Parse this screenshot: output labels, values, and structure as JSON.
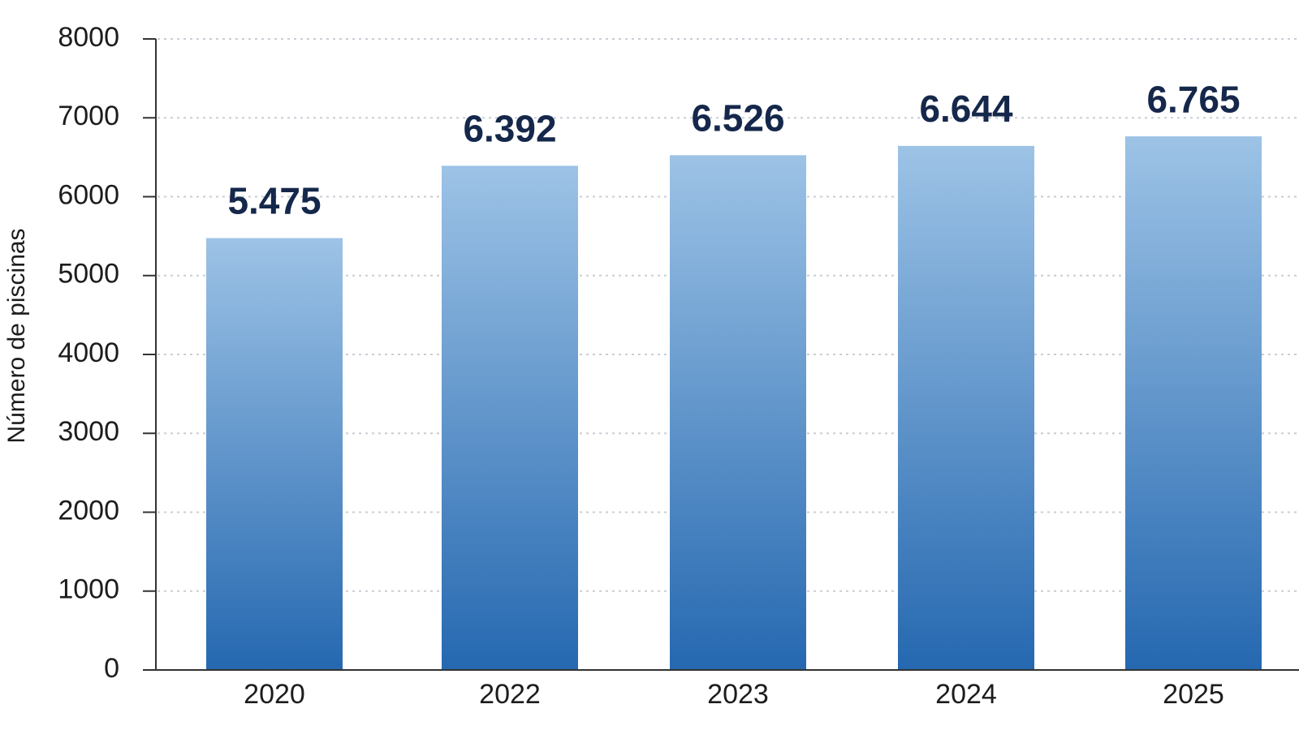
{
  "chart_data": {
    "type": "bar",
    "categories": [
      "2020",
      "2022",
      "2023",
      "2024",
      "2025"
    ],
    "values": [
      5475,
      6392,
      6526,
      6644,
      6765
    ],
    "value_labels": [
      "5.475",
      "6.392",
      "6.526",
      "6.644",
      "6.765"
    ],
    "ylabel": "Número de piscinas",
    "xlabel": "",
    "title": "",
    "ylim": [
      0,
      8000
    ],
    "yticks": [
      "0",
      "1000",
      "2000",
      "3000",
      "4000",
      "5000",
      "6000",
      "7000",
      "8000"
    ],
    "grid": true,
    "colors": {
      "bar_top": "#9dc3e6",
      "bar_bottom": "#2568b0",
      "label": "#15284b"
    }
  }
}
